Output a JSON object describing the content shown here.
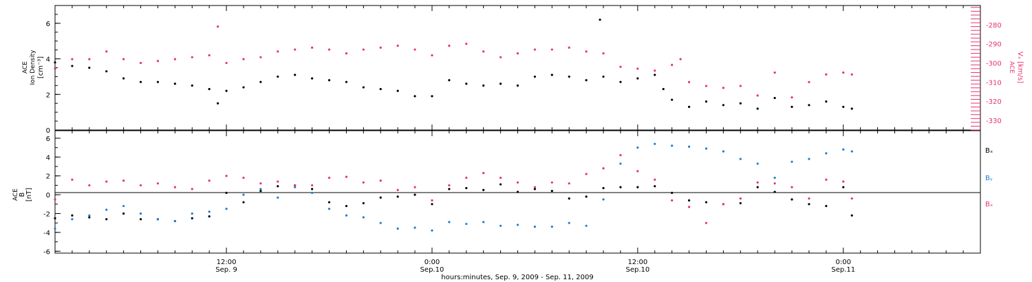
{
  "figure": {
    "xlabel": "hours:minutes, Sep.  9, 2009 - Sep. 11, 2009",
    "xticks": [
      {
        "hour": 12,
        "label1": "12:00",
        "label2": "Sep. 9"
      },
      {
        "hour": 24,
        "label1": "0:00",
        "label2": "Sep.10"
      },
      {
        "hour": 36,
        "label1": "12:00",
        "label2": "Sep.10"
      },
      {
        "hour": 48,
        "label1": "0:00",
        "label2": "Sep.11"
      }
    ]
  },
  "colors": {
    "black": "#000000",
    "pink": "#e8326a",
    "blue": "#1a7fd4"
  },
  "chart_data": [
    {
      "type": "scatter",
      "panel": "top",
      "xlim_hours": [
        2,
        56
      ],
      "ylabel_line1": "ACE",
      "ylabel_line2": "Ion Density",
      "ylabel_line3": "[cm⁻³]",
      "ylim": [
        0,
        7
      ],
      "yticks": [
        "0",
        "2",
        "4",
        "6"
      ],
      "y2label": "Vₓ [km/s]",
      "y2label_top": "ACE",
      "y2lim": [
        -335,
        -270
      ],
      "y2ticks": [
        "-280",
        "-290",
        "-300",
        "-310",
        "-320",
        "-330"
      ],
      "series": [
        {
          "name": "",
          "axis": "left",
          "color": "#000000",
          "x": [
            2,
            3,
            4,
            5,
            6,
            7,
            8,
            9,
            10,
            11,
            11.5,
            12,
            13,
            14,
            15,
            16,
            17,
            18,
            19,
            20,
            21,
            22,
            23,
            24,
            25,
            26,
            27,
            28,
            29,
            30,
            31,
            32,
            33,
            33.8,
            34,
            35,
            36,
            37,
            37.5,
            38,
            39,
            40,
            41,
            42,
            43,
            44,
            45,
            46,
            47,
            48,
            48.5
          ],
          "y": [
            3.8,
            3.6,
            3.5,
            3.3,
            2.9,
            2.7,
            2.7,
            2.6,
            2.5,
            2.3,
            1.5,
            2.2,
            2.4,
            2.7,
            3.0,
            3.1,
            2.9,
            2.8,
            2.7,
            2.4,
            2.3,
            2.2,
            1.9,
            1.9,
            2.8,
            2.6,
            2.5,
            2.6,
            2.5,
            3.0,
            3.1,
            3.0,
            2.8,
            6.2,
            3.0,
            2.7,
            2.9,
            3.1,
            2.3,
            1.7,
            1.3,
            1.6,
            1.4,
            1.5,
            1.2,
            1.8,
            1.3,
            1.4,
            1.6,
            1.3,
            1.2
          ]
        },
        {
          "name": "",
          "axis": "right",
          "color": "#e8326a",
          "x": [
            2,
            3,
            4,
            5,
            6,
            7,
            8,
            9,
            10,
            11,
            11.5,
            12,
            13,
            14,
            15,
            16,
            17,
            18,
            19,
            20,
            21,
            22,
            23,
            24,
            25,
            26,
            27,
            28,
            29,
            30,
            31,
            32,
            33,
            34,
            35,
            36,
            37,
            38,
            38.5,
            39,
            40,
            41,
            42,
            43,
            44,
            45,
            46,
            47,
            48,
            48.5
          ],
          "y": [
            -303,
            -298,
            -298,
            -294,
            -298,
            -300,
            -299,
            -298,
            -297,
            -296,
            -281,
            -300,
            -298,
            -297,
            -294,
            -293,
            -292,
            -293,
            -295,
            -293,
            -292,
            -291,
            -293,
            -296,
            -291,
            -290,
            -294,
            -297,
            -295,
            -293,
            -293,
            -292,
            -294,
            -295,
            -302,
            -303,
            -304,
            -301,
            -298,
            -310,
            -312,
            -313,
            -312,
            -317,
            -305,
            -318,
            -310,
            -306,
            -305,
            -306
          ]
        }
      ]
    },
    {
      "type": "scatter",
      "panel": "bottom",
      "xlim_hours": [
        2,
        56
      ],
      "ylabel_line1": "ACE",
      "ylabel_line2": "B",
      "ylabel_line3": "[nT]",
      "ylim": [
        -6.2,
        6.8
      ],
      "yticks": [
        "-6",
        "-4",
        "-2",
        "0",
        "2",
        "4",
        "6"
      ],
      "series": [
        {
          "name": "Bₓ",
          "color": "#000000",
          "x": [
            2,
            3,
            4,
            5,
            6,
            7,
            8,
            9,
            10,
            11,
            12,
            13,
            14,
            15,
            16,
            17,
            18,
            19,
            20,
            21,
            22,
            23,
            24,
            25,
            26,
            27,
            28,
            29,
            30,
            31,
            32,
            33,
            34,
            35,
            36,
            37,
            38,
            39,
            40,
            41,
            42,
            43,
            44,
            45,
            46,
            47,
            48,
            48.5
          ],
          "y": [
            -2.5,
            -2.2,
            -2.4,
            -2.6,
            -2.0,
            -2.6,
            -2.6,
            -2.8,
            -2.5,
            -2.3,
            0.2,
            -0.8,
            0.4,
            0.9,
            1.0,
            0.6,
            -0.8,
            -1.2,
            -0.9,
            -0.3,
            -0.2,
            0.0,
            -1.0,
            0.6,
            0.7,
            0.5,
            1.1,
            0.3,
            0.6,
            0.4,
            -0.4,
            -0.2,
            0.7,
            0.8,
            0.8,
            0.9,
            0.2,
            -0.6,
            -0.8,
            -1.0,
            -0.9,
            0.8,
            0.3,
            -0.5,
            -1.0,
            -1.2,
            0.8,
            -2.2
          ]
        },
        {
          "name": "Bᵧ",
          "color": "#1a7fd4",
          "x": [
            2,
            3,
            4,
            5,
            6,
            7,
            8,
            9,
            10,
            11,
            12,
            13,
            14,
            15,
            16,
            17,
            18,
            19,
            20,
            21,
            22,
            23,
            24,
            25,
            26,
            27,
            28,
            29,
            30,
            31,
            32,
            33,
            34,
            35,
            36,
            37,
            38,
            39,
            40,
            41,
            42,
            43,
            44,
            45,
            46,
            47,
            48,
            48.5
          ],
          "y": [
            -3.6,
            -2.6,
            -2.2,
            -1.6,
            -1.2,
            -2.0,
            -2.6,
            -2.8,
            -2.0,
            -1.8,
            -1.5,
            0.0,
            0.6,
            -0.3,
            0.8,
            0.2,
            -1.5,
            -2.2,
            -2.4,
            -3.0,
            -3.6,
            -3.5,
            -3.8,
            -2.9,
            -3.1,
            -2.9,
            -3.3,
            -3.2,
            -3.4,
            -3.4,
            -3.0,
            -3.3,
            -0.5,
            3.3,
            5.0,
            5.4,
            5.2,
            5.1,
            4.9,
            4.6,
            3.8,
            3.3,
            1.8,
            3.5,
            3.8,
            4.4,
            4.8,
            4.6
          ]
        },
        {
          "name": "Bₓ",
          "color": "#e8326a",
          "x": [
            2,
            3,
            4,
            5,
            6,
            7,
            8,
            9,
            10,
            11,
            12,
            13,
            14,
            15,
            16,
            17,
            18,
            19,
            20,
            21,
            22,
            23,
            24,
            25,
            26,
            27,
            28,
            29,
            30,
            31,
            32,
            33,
            34,
            35,
            36,
            37,
            38,
            39,
            40,
            41,
            42,
            43,
            44,
            45,
            46,
            47,
            48,
            48.5
          ],
          "y": [
            -0.5,
            1.6,
            1.0,
            1.4,
            1.5,
            1.0,
            1.2,
            0.8,
            0.6,
            1.5,
            2.0,
            1.8,
            1.2,
            1.4,
            1.0,
            1.0,
            1.8,
            1.9,
            1.3,
            1.5,
            0.5,
            0.8,
            -0.6,
            1.0,
            1.8,
            2.3,
            1.8,
            1.3,
            0.8,
            1.3,
            1.2,
            2.2,
            2.8,
            4.2,
            2.5,
            1.6,
            -0.6,
            -1.3,
            -3.0,
            -1.0,
            -0.4,
            1.3,
            1.2,
            0.8,
            -0.4,
            1.6,
            1.4,
            -0.4
          ]
        }
      ]
    }
  ]
}
